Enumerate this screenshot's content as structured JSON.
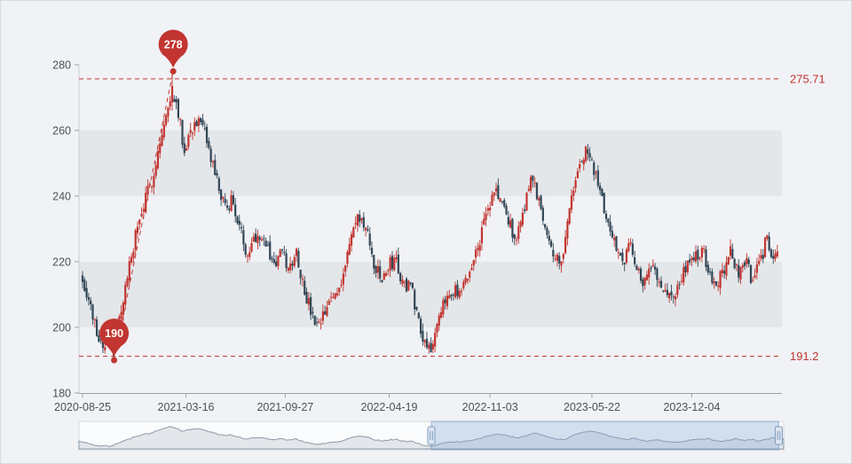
{
  "page": {
    "background": "#f0f2f5"
  },
  "chart_data": {
    "type": "candlestick",
    "title": "",
    "xlabel": "",
    "ylabel": "",
    "ylim": [
      180,
      280
    ],
    "y_ticks": [
      180,
      200,
      220,
      240,
      260,
      280
    ],
    "x_tick_labels": [
      "2020-08-25",
      "2021-03-16",
      "2021-09-27",
      "2022-04-19",
      "2022-11-03",
      "2023-05-22",
      "2023-12-04"
    ],
    "date_range": [
      "2020-08-25",
      "2024-05-22"
    ],
    "grid": "split-area-bands",
    "legend": "none",
    "colors": {
      "bullish": "#c23531",
      "bearish": "#314656",
      "marker": "#c23531",
      "split_band": "#e4e7ea",
      "axis_line": "#9aa1a9",
      "axis_label": "#4d5259"
    },
    "marklines": {
      "max": 275.71,
      "max_label": "275.71",
      "min": 191.2,
      "min_label": "191.2"
    },
    "markpoints": [
      {
        "type": "max",
        "date": "2021-02-19",
        "value": 278,
        "label": "278"
      },
      {
        "type": "min",
        "date": "2020-10-26",
        "value": 190,
        "label": "190"
      }
    ],
    "step_days": 4,
    "volatility": 2.2,
    "seed": 7,
    "trend_keyframes": [
      [
        "2020-08-25",
        215
      ],
      [
        "2020-09-04",
        210
      ],
      [
        "2020-09-14",
        203
      ],
      [
        "2020-09-24",
        198
      ],
      [
        "2020-10-05",
        194
      ],
      [
        "2020-10-16",
        197
      ],
      [
        "2020-10-26",
        192
      ],
      [
        "2020-11-02",
        199
      ],
      [
        "2020-11-09",
        206
      ],
      [
        "2020-11-16",
        211
      ],
      [
        "2020-11-23",
        217
      ],
      [
        "2020-12-07",
        228
      ],
      [
        "2020-12-21",
        236
      ],
      [
        "2021-01-08",
        245
      ],
      [
        "2021-01-22",
        255
      ],
      [
        "2021-02-05",
        264
      ],
      [
        "2021-02-19",
        272
      ],
      [
        "2021-03-01",
        266
      ],
      [
        "2021-03-12",
        254
      ],
      [
        "2021-03-22",
        259
      ],
      [
        "2021-04-05",
        263
      ],
      [
        "2021-04-19",
        260
      ],
      [
        "2021-05-03",
        252
      ],
      [
        "2021-05-17",
        244
      ],
      [
        "2021-05-31",
        236
      ],
      [
        "2021-06-14",
        239
      ],
      [
        "2021-06-28",
        231
      ],
      [
        "2021-07-12",
        223
      ],
      [
        "2021-07-26",
        227
      ],
      [
        "2021-08-09",
        229
      ],
      [
        "2021-08-23",
        224
      ],
      [
        "2021-09-06",
        219
      ],
      [
        "2021-09-20",
        223
      ],
      [
        "2021-10-04",
        217
      ],
      [
        "2021-10-18",
        224
      ],
      [
        "2021-11-01",
        213
      ],
      [
        "2021-11-15",
        205
      ],
      [
        "2021-11-29",
        199
      ],
      [
        "2021-12-13",
        204
      ],
      [
        "2021-12-27",
        209
      ],
      [
        "2022-01-10",
        212
      ],
      [
        "2022-01-24",
        220
      ],
      [
        "2022-02-07",
        230
      ],
      [
        "2022-02-21",
        234
      ],
      [
        "2022-03-07",
        228
      ],
      [
        "2022-03-21",
        219
      ],
      [
        "2022-04-04",
        214
      ],
      [
        "2022-04-19",
        219
      ],
      [
        "2022-05-02",
        221
      ],
      [
        "2022-05-16",
        212
      ],
      [
        "2022-05-30",
        214
      ],
      [
        "2022-06-13",
        204
      ],
      [
        "2022-06-27",
        196
      ],
      [
        "2022-07-11",
        194
      ],
      [
        "2022-07-25",
        201
      ],
      [
        "2022-08-08",
        209
      ],
      [
        "2022-08-22",
        212
      ],
      [
        "2022-09-05",
        209
      ],
      [
        "2022-09-19",
        215
      ],
      [
        "2022-10-03",
        221
      ],
      [
        "2022-10-17",
        229
      ],
      [
        "2022-10-31",
        236
      ],
      [
        "2022-11-14",
        242
      ],
      [
        "2022-11-28",
        237
      ],
      [
        "2022-12-12",
        231
      ],
      [
        "2022-12-26",
        227
      ],
      [
        "2023-01-09",
        237
      ],
      [
        "2023-01-23",
        246
      ],
      [
        "2023-02-06",
        239
      ],
      [
        "2023-02-20",
        231
      ],
      [
        "2023-03-06",
        224
      ],
      [
        "2023-03-20",
        218
      ],
      [
        "2023-04-03",
        231
      ],
      [
        "2023-04-17",
        243
      ],
      [
        "2023-05-01",
        251
      ],
      [
        "2023-05-15",
        254
      ],
      [
        "2023-05-29",
        246
      ],
      [
        "2023-06-12",
        238
      ],
      [
        "2023-06-26",
        230
      ],
      [
        "2023-07-10",
        224
      ],
      [
        "2023-07-24",
        221
      ],
      [
        "2023-08-07",
        225
      ],
      [
        "2023-08-21",
        217
      ],
      [
        "2023-09-04",
        213
      ],
      [
        "2023-09-18",
        219
      ],
      [
        "2023-10-02",
        215
      ],
      [
        "2023-10-16",
        210
      ],
      [
        "2023-10-30",
        209
      ],
      [
        "2023-11-13",
        215
      ],
      [
        "2023-11-27",
        219
      ],
      [
        "2023-12-11",
        221
      ],
      [
        "2023-12-25",
        224
      ],
      [
        "2024-01-08",
        217
      ],
      [
        "2024-01-22",
        213
      ],
      [
        "2024-02-05",
        218
      ],
      [
        "2024-02-19",
        223
      ],
      [
        "2024-03-04",
        216
      ],
      [
        "2024-03-18",
        221
      ],
      [
        "2024-04-01",
        214
      ],
      [
        "2024-04-15",
        219
      ],
      [
        "2024-04-29",
        227
      ],
      [
        "2024-05-13",
        221
      ],
      [
        "2024-05-20",
        222
      ]
    ]
  },
  "datazoom": {
    "start_pct": 50,
    "end_pct": 99.3
  }
}
